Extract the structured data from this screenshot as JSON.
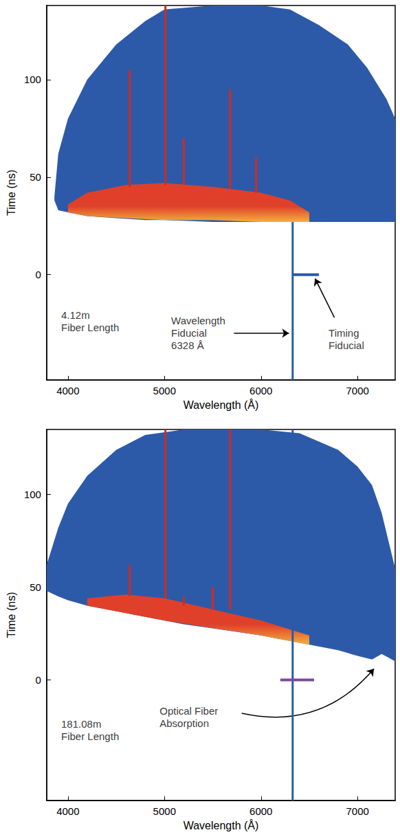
{
  "chart_data": [
    {
      "type": "streak",
      "x_label": "Wavelength (Å)",
      "y_label": "Time (ns)",
      "xlim": [
        3780,
        7390
      ],
      "ylim": [
        -54,
        138
      ],
      "xticks": [
        4000,
        5000,
        6000,
        7000
      ],
      "yticks": [
        0,
        50,
        100
      ],
      "envelope": {
        "color": "#2c5aa8",
        "x": [
          3860,
          3900,
          4000,
          4200,
          4500,
          4800,
          5000,
          5500,
          6000,
          6300,
          6600,
          6900,
          7100,
          7300,
          7390
        ],
        "y_low": [
          38,
          33,
          32,
          30,
          29,
          28,
          28,
          27,
          27,
          27,
          27,
          27,
          27,
          27,
          27
        ],
        "y_high": [
          40,
          62,
          80,
          100,
          118,
          130,
          136,
          138,
          138,
          136,
          128,
          118,
          106,
          90,
          80
        ]
      },
      "bright_band": {
        "color": "#e0402a",
        "x": [
          4000,
          4200,
          4600,
          5000,
          5500,
          6000,
          6300,
          6500
        ],
        "y_low": [
          32,
          30,
          29,
          28,
          28,
          27,
          27,
          27
        ],
        "y_high": [
          36,
          42,
          46,
          47,
          45,
          42,
          38,
          32
        ]
      },
      "emission_lines": {
        "color": "#d42a1e",
        "x": [
          4640,
          5010,
          5200,
          5680,
          5950
        ],
        "y_low": [
          45,
          46,
          46,
          44,
          42
        ],
        "y_high": [
          105,
          138,
          70,
          95,
          60
        ]
      },
      "wavelength_fiducial": {
        "color": "#2a5aa8",
        "x": 6328,
        "y": [
          -54,
          27
        ]
      },
      "timing_fiducial": {
        "color": "#2a5aa8",
        "y": 0,
        "x": [
          6328,
          6600
        ]
      },
      "annotations": [
        {
          "text": [
            "4.12m",
            "Fiber Length"
          ],
          "x": 3930,
          "y": -24
        },
        {
          "text": [
            "Wavelength",
            "Fiducial",
            "6328 Å"
          ],
          "x": 5070,
          "y": -30,
          "arrow": [
            [
              5720,
              -30
            ],
            [
              6290,
              -30
            ]
          ]
        },
        {
          "text": [
            "Timing",
            "Fiducial"
          ],
          "x": 6700,
          "y": -33,
          "arrow": [
            [
              6760,
              -22
            ],
            [
              6560,
              -2
            ]
          ]
        }
      ]
    },
    {
      "type": "streak",
      "x_label": "Wavelength (Å)",
      "y_label": "Time (ns)",
      "xlim": [
        3780,
        7390
      ],
      "ylim": [
        -65,
        135
      ],
      "xticks": [
        4000,
        5000,
        6000,
        7000
      ],
      "yticks": [
        0,
        50,
        100
      ],
      "envelope": {
        "color": "#2c5aa8",
        "x": [
          3780,
          3900,
          4000,
          4200,
          4500,
          4800,
          5200,
          5600,
          6000,
          6400,
          6800,
          7000,
          7150,
          7250,
          7320,
          7390
        ],
        "y_low": [
          48,
          45,
          43,
          40,
          37,
          34,
          30,
          27,
          24,
          20,
          16,
          13,
          11,
          14,
          12,
          10
        ],
        "y_high": [
          62,
          82,
          95,
          110,
          124,
          132,
          135,
          135,
          135,
          133,
          124,
          115,
          105,
          90,
          75,
          60
        ]
      },
      "bright_band": {
        "color": "#e0402a",
        "x": [
          4200,
          4600,
          5000,
          5500,
          6000,
          6500
        ],
        "y_low": [
          40,
          36,
          32,
          28,
          24,
          19
        ],
        "y_high": [
          44,
          46,
          44,
          38,
          32,
          24
        ]
      },
      "emission_lines": {
        "color": "#d42a1e",
        "x": [
          4640,
          5010,
          5200,
          5500,
          5680
        ],
        "y_low": [
          45,
          44,
          40,
          38,
          38
        ],
        "y_high": [
          62,
          135,
          45,
          50,
          135
        ]
      },
      "wavelength_fiducial": {
        "color": "#2a5aa8",
        "x": 6328,
        "y": [
          -65,
          135
        ]
      },
      "timing_fiducial": {
        "color": "#7a4a9a",
        "y": 0,
        "x": [
          6200,
          6550
        ]
      },
      "annotations": [
        {
          "text": [
            "181.08m",
            "Fiber Length"
          ],
          "x": 3930,
          "y": -27
        },
        {
          "text": [
            "Optical Fiber",
            "Absorption"
          ],
          "x": 4950,
          "y": -20,
          "arrow": [
            [
              5800,
              -18
            ],
            [
              7170,
              6
            ]
          ],
          "line_style": "curved"
        }
      ]
    }
  ]
}
